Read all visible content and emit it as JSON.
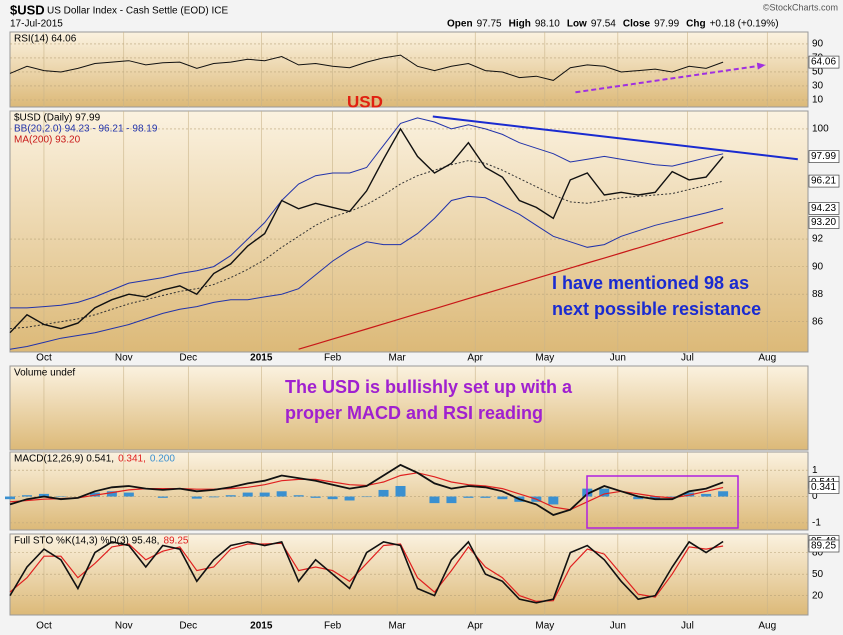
{
  "header": {
    "symbol": "$USD",
    "name": "US Dollar Index - Cash Settle (EOD) ICE",
    "date": "17-Jul-2015",
    "credit": "©StockCharts.com",
    "quote": [
      {
        "label": "Open",
        "value": "97.75"
      },
      {
        "label": "High",
        "value": "98.10"
      },
      {
        "label": "Low",
        "value": "97.54"
      },
      {
        "label": "Close",
        "value": "97.99"
      },
      {
        "label": "Chg",
        "value": "+0.18 (+0.19%)"
      }
    ]
  },
  "chart_data": [
    {
      "type": "line",
      "xlim": [
        0,
        47
      ],
      "ylim": [
        0,
        107
      ],
      "yticks": [
        10,
        30,
        50,
        70,
        90
      ],
      "x": [
        0,
        1,
        2,
        3,
        4,
        5,
        6,
        7,
        8,
        9,
        10,
        11,
        12,
        13,
        14,
        15,
        16,
        17,
        18,
        19,
        20,
        21,
        22,
        23,
        24,
        25,
        26,
        27,
        28,
        29,
        30,
        31,
        32,
        33,
        34,
        35,
        36,
        37,
        38,
        39,
        40,
        41,
        42
      ],
      "series": [
        {
          "color": "#111111",
          "width": 1,
          "values": [
            48,
            58,
            52,
            50,
            55,
            62,
            64,
            66,
            60,
            63,
            64,
            55,
            62,
            64,
            68,
            66,
            72,
            60,
            62,
            58,
            56,
            64,
            70,
            74,
            58,
            52,
            58,
            62,
            52,
            50,
            42,
            44,
            38,
            56,
            60,
            58,
            50,
            52,
            54,
            50,
            58,
            55,
            64.06
          ]
        }
      ],
      "legend": [
        [
          {
            "text": "RSI(14) 64.06",
            "color": "#000000"
          }
        ]
      ],
      "last_labels": [
        {
          "value": 64.06,
          "label": "64.06"
        }
      ],
      "arrow": {
        "x": [
          33.3,
          44.5
        ],
        "values": [
          21,
          60
        ],
        "color": "#a030e0"
      }
    },
    {
      "type": "line",
      "xlim": [
        0,
        47
      ],
      "ylim": [
        83.8,
        101.3
      ],
      "yticks": [
        86,
        88,
        90,
        92,
        100
      ],
      "xticks": [
        {
          "value": 2,
          "label": "Oct"
        },
        {
          "value": 6.7,
          "label": "Nov"
        },
        {
          "value": 10.5,
          "label": "Dec"
        },
        {
          "value": 14.8,
          "label": "2015"
        },
        {
          "value": 19,
          "label": "Feb"
        },
        {
          "value": 22.8,
          "label": "Mar"
        },
        {
          "value": 27.4,
          "label": "Apr"
        },
        {
          "value": 31.5,
          "label": "May"
        },
        {
          "value": 35.8,
          "label": "Jun"
        },
        {
          "value": 39.9,
          "label": "Jul"
        },
        {
          "value": 44.6,
          "label": "Aug"
        }
      ],
      "x": [
        0,
        1,
        2,
        3,
        4,
        5,
        6,
        7,
        8,
        9,
        10,
        11,
        12,
        13,
        14,
        15,
        16,
        17,
        18,
        19,
        20,
        21,
        22,
        23,
        24,
        25,
        26,
        27,
        28,
        29,
        30,
        31,
        32,
        33,
        34,
        35,
        36,
        37,
        38,
        39,
        40,
        41,
        42
      ],
      "series": [
        {
          "color": "#2233aa",
          "width": 1,
          "values": [
            87.0,
            87.0,
            87.1,
            87.2,
            87.4,
            87.8,
            88.3,
            88.8,
            89.0,
            89.2,
            89.5,
            89.7,
            90.0,
            90.8,
            92.0,
            93.2,
            94.8,
            96.0,
            96.6,
            96.8,
            96.8,
            97.2,
            98.8,
            100.4,
            100.8,
            100.5,
            100.0,
            100.3,
            100.0,
            99.6,
            99.0,
            98.6,
            98.2,
            97.6,
            97.8,
            98.0,
            97.8,
            97.6,
            97.4,
            97.3,
            97.6,
            97.9,
            98.19
          ]
        },
        {
          "color": "#2233aa",
          "width": 1,
          "values": [
            84.0,
            84.2,
            84.5,
            84.8,
            85.0,
            85.2,
            85.5,
            85.8,
            86.2,
            86.6,
            86.9,
            87.1,
            87.4,
            87.6,
            87.6,
            87.8,
            88.0,
            88.4,
            89.4,
            90.4,
            91.2,
            91.8,
            91.6,
            91.6,
            92.4,
            93.5,
            94.8,
            95.1,
            95.0,
            94.4,
            93.8,
            93.0,
            92.2,
            91.8,
            91.4,
            91.6,
            92.2,
            92.6,
            93.0,
            93.3,
            93.6,
            93.9,
            94.23
          ]
        },
        {
          "color": "#333333",
          "width": 1,
          "style": "dotted",
          "values": [
            85.5,
            85.6,
            85.8,
            86.0,
            86.2,
            86.5,
            86.9,
            87.3,
            87.6,
            87.9,
            88.2,
            88.4,
            88.7,
            89.2,
            89.8,
            90.5,
            91.4,
            92.2,
            93.0,
            93.6,
            94.0,
            94.5,
            95.2,
            96.0,
            96.6,
            97.0,
            97.4,
            97.7,
            97.5,
            97.0,
            96.4,
            95.8,
            95.2,
            94.7,
            94.6,
            94.8,
            95.0,
            95.1,
            95.2,
            95.3,
            95.6,
            95.9,
            96.21
          ]
        },
        {
          "color": "#c81818",
          "width": 1.2,
          "values": [
            null,
            null,
            null,
            null,
            null,
            null,
            null,
            null,
            null,
            null,
            null,
            null,
            null,
            null,
            null,
            null,
            null,
            84.0,
            84.37,
            84.74,
            85.1,
            85.47,
            85.84,
            86.21,
            86.58,
            86.94,
            87.31,
            87.68,
            88.05,
            88.42,
            88.78,
            89.15,
            89.52,
            89.89,
            90.26,
            90.62,
            90.99,
            91.36,
            91.73,
            92.1,
            92.46,
            92.83,
            93.2
          ]
        },
        {
          "color": "#111111",
          "width": 1.4,
          "values": [
            85.2,
            86.5,
            85.8,
            85.5,
            85.9,
            87.0,
            87.6,
            88.0,
            87.8,
            88.3,
            88.6,
            88.0,
            89.5,
            90.2,
            91.5,
            92.4,
            94.8,
            94.2,
            94.6,
            94.3,
            94.0,
            95.5,
            97.8,
            100.0,
            98.0,
            96.8,
            97.5,
            99.0,
            97.2,
            96.5,
            94.8,
            94.3,
            93.5,
            96.3,
            96.8,
            95.2,
            95.4,
            95.2,
            95.4,
            96.9,
            96.3,
            96.5,
            97.99
          ]
        }
      ],
      "legend": [
        [
          {
            "text": "$USD (Daily) 97.99",
            "color": "#000000"
          }
        ],
        [
          {
            "text": "BB(20,2.0) 94.23 - 96.21 - 98.19",
            "color": "#2233aa"
          }
        ],
        [
          {
            "text": "MA(200) 93.20",
            "color": "#c81818"
          }
        ]
      ],
      "last_labels": [
        {
          "value": 97.99,
          "label": "97.99"
        },
        {
          "value": 96.21,
          "label": "96.21"
        },
        {
          "value": 94.23,
          "label": "94.23"
        },
        {
          "value": 93.2,
          "label": "93.20"
        }
      ],
      "trendline": {
        "x": [
          24.9,
          46.4
        ],
        "values": [
          100.9,
          97.8
        ],
        "color": "#1a2bd0"
      },
      "annotations": [
        {
          "text": "USD",
          "color": "#e02010"
        },
        {
          "text": "I have mentioned 98 as",
          "color": "#1a2bd0"
        },
        {
          "text": "next possible resistance",
          "color": "#1a2bd0"
        }
      ]
    },
    {
      "type": "volume",
      "xlim": [
        0,
        47
      ],
      "legend": [
        [
          {
            "text": "Volume undef",
            "color": "#000000"
          }
        ]
      ],
      "annotations": [
        {
          "text": "The USD is bullishly set up with a",
          "color": "#a020d0"
        },
        {
          "text": "proper MACD and RSI reading",
          "color": "#a020d0"
        }
      ]
    },
    {
      "type": "line",
      "xlim": [
        0,
        47
      ],
      "ylim": [
        -1.27,
        1.69
      ],
      "yticks": [
        -1,
        0,
        1
      ],
      "x": [
        0,
        1,
        2,
        3,
        4,
        5,
        6,
        7,
        8,
        9,
        10,
        11,
        12,
        13,
        14,
        15,
        16,
        17,
        18,
        19,
        20,
        21,
        22,
        23,
        24,
        25,
        26,
        27,
        28,
        29,
        30,
        31,
        32,
        33,
        34,
        35,
        36,
        37,
        38,
        39,
        40,
        41,
        42
      ],
      "histogram": {
        "color": "#3a90d0",
        "values": [
          -0.1,
          0.05,
          0.1,
          -0.02,
          0,
          0.15,
          0.2,
          0.15,
          0,
          -0.05,
          0,
          -0.08,
          -0.03,
          0.05,
          0.15,
          0.15,
          0.2,
          0.05,
          -0.05,
          -0.1,
          -0.15,
          -0.02,
          0.25,
          0.4,
          0,
          -0.25,
          -0.25,
          -0.05,
          -0.05,
          -0.1,
          -0.2,
          -0.2,
          -0.3,
          0,
          0.3,
          0.3,
          0,
          -0.1,
          -0.1,
          -0.05,
          0.15,
          0.1,
          0.2
        ]
      },
      "series": [
        {
          "color": "#e02020",
          "width": 1.2,
          "values": [
            -0.2,
            -0.15,
            -0.1,
            -0.08,
            -0.05,
            0.05,
            0.15,
            0.25,
            0.3,
            0.3,
            0.3,
            0.28,
            0.28,
            0.3,
            0.35,
            0.45,
            0.6,
            0.65,
            0.65,
            0.55,
            0.45,
            0.42,
            0.55,
            0.8,
            0.9,
            0.75,
            0.55,
            0.45,
            0.4,
            0.3,
            0.1,
            -0.1,
            -0.4,
            -0.5,
            -0.2,
            0.1,
            0.2,
            0.1,
            0.0,
            -0.05,
            0.05,
            0.2,
            0.341
          ]
        },
        {
          "color": "#111111",
          "width": 1.8,
          "values": [
            -0.3,
            -0.1,
            0.0,
            -0.1,
            -0.05,
            0.2,
            0.35,
            0.4,
            0.3,
            0.25,
            0.3,
            0.2,
            0.25,
            0.35,
            0.5,
            0.6,
            0.8,
            0.7,
            0.6,
            0.45,
            0.3,
            0.4,
            0.8,
            1.2,
            0.9,
            0.5,
            0.3,
            0.4,
            0.35,
            0.2,
            -0.1,
            -0.3,
            -0.7,
            -0.5,
            0.1,
            0.4,
            0.2,
            0.0,
            -0.1,
            -0.1,
            0.2,
            0.3,
            0.541
          ]
        }
      ],
      "legend": [
        [
          {
            "text": "MACD(12,26,9) 0.541,",
            "color": "#000000"
          },
          {
            "text": "0.341,",
            "color": "#e02020"
          },
          {
            "text": "0.200",
            "color": "#3a90d0"
          }
        ]
      ],
      "last_labels": [
        {
          "value": 0.541,
          "label": "0.541"
        },
        {
          "value": 0.341,
          "label": "0.341"
        }
      ]
    },
    {
      "type": "line",
      "xlim": [
        0,
        47
      ],
      "ylim": [
        -7,
        106
      ],
      "yticks": [
        20,
        50,
        80
      ],
      "xticks": [
        {
          "value": 2,
          "label": "Oct"
        },
        {
          "value": 6.7,
          "label": "Nov"
        },
        {
          "value": 10.5,
          "label": "Dec"
        },
        {
          "value": 14.8,
          "label": "2015"
        },
        {
          "value": 19,
          "label": "Feb"
        },
        {
          "value": 22.8,
          "label": "Mar"
        },
        {
          "value": 27.4,
          "label": "Apr"
        },
        {
          "value": 31.5,
          "label": "May"
        },
        {
          "value": 35.8,
          "label": "Jun"
        },
        {
          "value": 39.9,
          "label": "Jul"
        },
        {
          "value": 44.6,
          "label": "Aug"
        }
      ],
      "x": [
        0,
        1,
        2,
        3,
        4,
        5,
        6,
        7,
        8,
        9,
        10,
        11,
        12,
        13,
        14,
        15,
        16,
        17,
        18,
        19,
        20,
        21,
        22,
        23,
        24,
        25,
        26,
        27,
        28,
        29,
        30,
        31,
        32,
        33,
        34,
        35,
        36,
        37,
        38,
        39,
        40,
        41,
        42
      ],
      "series": [
        {
          "color": "#e02020",
          "width": 1.2,
          "values": [
            25,
            45,
            75,
            75,
            45,
            65,
            88,
            92,
            70,
            82,
            88,
            55,
            60,
            85,
            92,
            92,
            93,
            55,
            60,
            55,
            40,
            65,
            90,
            92,
            45,
            25,
            55,
            88,
            60,
            45,
            20,
            12,
            13,
            60,
            85,
            78,
            50,
            22,
            18,
            50,
            88,
            85,
            89.25
          ]
        },
        {
          "color": "#111111",
          "width": 1.6,
          "values": [
            20,
            60,
            85,
            70,
            30,
            80,
            95,
            90,
            60,
            90,
            85,
            40,
            70,
            90,
            95,
            90,
            95,
            40,
            70,
            50,
            30,
            80,
            95,
            90,
            30,
            20,
            70,
            95,
            50,
            40,
            15,
            10,
            15,
            80,
            90,
            70,
            40,
            15,
            20,
            60,
            95,
            80,
            95.48
          ]
        }
      ],
      "legend": [
        [
          {
            "text": "Full STO %K(14,3) %D(3) 95.48,",
            "color": "#000000"
          },
          {
            "text": "89.25",
            "color": "#e02020"
          }
        ]
      ],
      "last_labels": [
        {
          "value": 95.48,
          "label": "95.48"
        },
        {
          "value": 89.25,
          "label": "89.25"
        }
      ]
    }
  ]
}
